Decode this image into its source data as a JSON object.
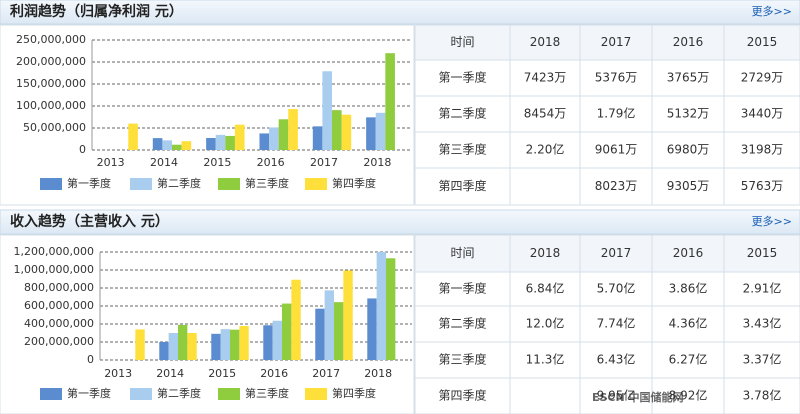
{
  "sections": [
    {
      "title": "利润趋势（归属净利润 元）",
      "more": "更多>>",
      "table": {
        "header": [
          "时间",
          "2018",
          "2017",
          "2016",
          "2015"
        ],
        "rows": [
          [
            "第一季度",
            "7423万",
            "5376万",
            "3765万",
            "2729万"
          ],
          [
            "第二季度",
            "8454万",
            "1.79亿",
            "5132万",
            "3440万"
          ],
          [
            "第三季度",
            "2.20亿",
            "9061万",
            "6980万",
            "3198万"
          ],
          [
            "第四季度",
            null,
            "8023万",
            "9305万",
            "5763万"
          ]
        ]
      }
    },
    {
      "title": "收入趋势（主营收入 元）",
      "more": "更多>>",
      "table": {
        "header": [
          "时间",
          "2018",
          "2017",
          "2016",
          "2015"
        ],
        "rows": [
          [
            "第一季度",
            "6.84亿",
            "5.70亿",
            "3.86亿",
            "2.91亿"
          ],
          [
            "第二季度",
            "12.0亿",
            "7.74亿",
            "4.36亿",
            "3.43亿"
          ],
          [
            "第三季度",
            "11.3亿",
            "6.43亿",
            "6.27亿",
            "3.37亿"
          ],
          [
            "第四季度",
            null,
            "9.95亿",
            "8.92亿",
            "3.78亿"
          ]
        ]
      }
    }
  ],
  "chart_data": [
    {
      "type": "bar",
      "categories": [
        "2013",
        "2014",
        "2015",
        "2016",
        "2017",
        "2018"
      ],
      "series": [
        {
          "name": "第一季度",
          "color": "#5b8ccf",
          "values": [
            null,
            27000000,
            27290000,
            37650000,
            53760000,
            74230000
          ]
        },
        {
          "name": "第二季度",
          "color": "#a9cdee",
          "values": [
            null,
            22000000,
            34400000,
            51320000,
            179000000,
            84540000
          ]
        },
        {
          "name": "第三季度",
          "color": "#8fcc3e",
          "values": [
            null,
            12000000,
            31980000,
            69800000,
            90610000,
            220000000
          ]
        },
        {
          "name": "第四季度",
          "color": "#ffdf3a",
          "values": [
            60000000,
            20000000,
            57630000,
            93050000,
            80230000,
            null
          ]
        }
      ],
      "ylim": [
        0,
        250000000
      ],
      "yticks": [
        0,
        {
          "value": 50000000,
          "label": "50,000,000"
        },
        {
          "value": 100000000,
          "label": "100,000,000"
        },
        {
          "value": 150000000,
          "label": "150,000,000"
        },
        {
          "value": 200000000,
          "label": "200,000,000"
        },
        {
          "value": 250000000,
          "label": "250,000,000"
        }
      ],
      "grid": true
    },
    {
      "type": "bar",
      "categories": [
        "2013",
        "2014",
        "2015",
        "2016",
        "2017",
        "2018"
      ],
      "series": [
        {
          "name": "第一季度",
          "color": "#5b8ccf",
          "values": [
            null,
            200000000,
            291000000,
            386000000,
            570000000,
            684000000
          ]
        },
        {
          "name": "第二季度",
          "color": "#a9cdee",
          "values": [
            null,
            300000000,
            343000000,
            436000000,
            774000000,
            1200000000
          ]
        },
        {
          "name": "第三季度",
          "color": "#8fcc3e",
          "values": [
            null,
            390000000,
            337000000,
            627000000,
            643000000,
            1130000000
          ]
        },
        {
          "name": "第四季度",
          "color": "#ffdf3a",
          "values": [
            340000000,
            300000000,
            378000000,
            892000000,
            995000000,
            null
          ]
        }
      ],
      "ylim": [
        0,
        1200000000
      ],
      "yticks": [
        0,
        {
          "value": 200000000,
          "label": "200,000,000"
        },
        {
          "value": 400000000,
          "label": "400,000,000"
        },
        {
          "value": 600000000,
          "label": "600,000,000"
        },
        {
          "value": 800000000,
          "label": "800,000,000"
        },
        {
          "value": 1000000000,
          "label": "1,000,000,000"
        },
        {
          "value": 1200000000,
          "label": "1,200,000,000"
        }
      ],
      "grid": true
    }
  ],
  "watermark": "ESCN 中国储能网"
}
